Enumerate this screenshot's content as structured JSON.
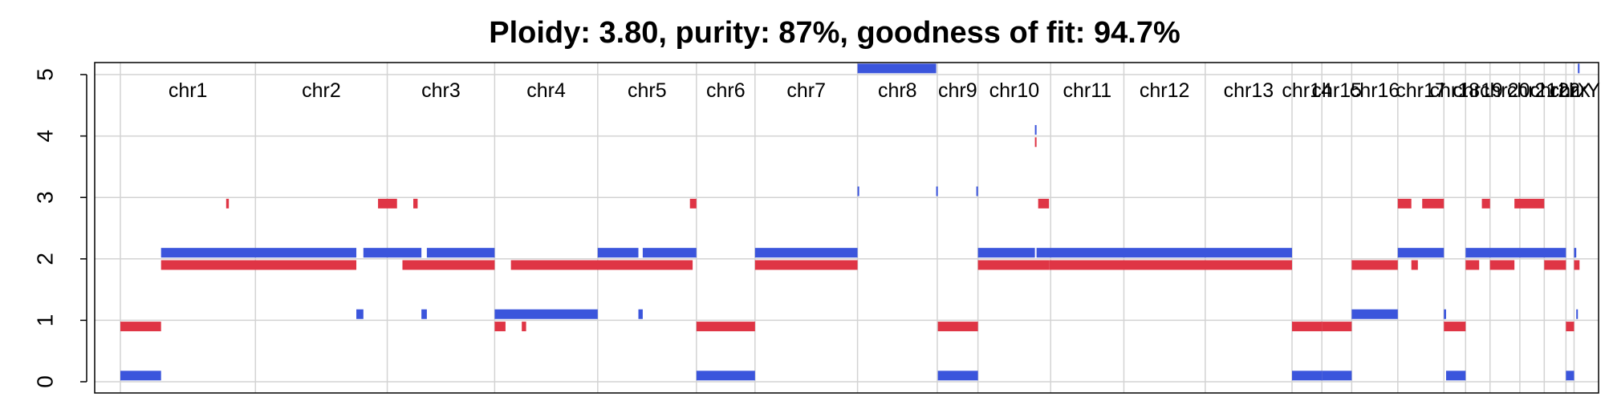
{
  "chart_data": {
    "type": "segment",
    "title": "Ploidy: 3.80, purity: 87%, goodness of fit: 94.7%",
    "xlabel": "",
    "ylabel": "",
    "ylim": [
      -0.2,
      5.1
    ],
    "yticks": [
      0,
      1,
      2,
      3,
      4,
      5
    ],
    "grid": true,
    "colors": {
      "major": "#3B55DC",
      "minor": "#DF3545",
      "grid": "#D3D3D3",
      "frame": "#000000"
    },
    "chromosomes": [
      {
        "name": "chr1",
        "start": 0,
        "end": 249
      },
      {
        "name": "chr2",
        "start": 249,
        "end": 492
      },
      {
        "name": "chr3",
        "start": 492,
        "end": 690
      },
      {
        "name": "chr4",
        "start": 690,
        "end": 880
      },
      {
        "name": "chr5",
        "start": 880,
        "end": 1062
      },
      {
        "name": "chr6",
        "start": 1062,
        "end": 1170
      },
      {
        "name": "chr7",
        "start": 1170,
        "end": 1359
      },
      {
        "name": "chr8",
        "start": 1359,
        "end": 1506
      },
      {
        "name": "chr9",
        "start": 1506,
        "end": 1581
      },
      {
        "name": "chr10",
        "start": 1581,
        "end": 1715
      },
      {
        "name": "chr11",
        "start": 1715,
        "end": 1850
      },
      {
        "name": "chr12",
        "start": 1850,
        "end": 2000
      },
      {
        "name": "chr13",
        "start": 2000,
        "end": 2160
      },
      {
        "name": "chr14",
        "start": 2160,
        "end": 2215
      },
      {
        "name": "chr15",
        "start": 2215,
        "end": 2270
      },
      {
        "name": "chr16",
        "start": 2270,
        "end": 2355
      },
      {
        "name": "chr17",
        "start": 2355,
        "end": 2440
      },
      {
        "name": "chr18",
        "start": 2440,
        "end": 2480
      },
      {
        "name": "chr19",
        "start": 2480,
        "end": 2525
      },
      {
        "name": "chr20",
        "start": 2525,
        "end": 2580
      },
      {
        "name": "chr21",
        "start": 2580,
        "end": 2625
      },
      {
        "name": "chr22",
        "start": 2625,
        "end": 2665
      },
      {
        "name": "chrX",
        "start": 2665,
        "end": 2680
      },
      {
        "name": "chrY",
        "start": 2680,
        "end": 2700
      }
    ],
    "series": [
      {
        "name": "major",
        "color": "#3B55DC",
        "segments": [
          {
            "x0": 0,
            "x1": 75,
            "y": 0.1
          },
          {
            "x0": 75,
            "x1": 435,
            "y": 2.1
          },
          {
            "x0": 435,
            "x1": 448,
            "y": 1.1
          },
          {
            "x0": 448,
            "x1": 555,
            "y": 2.1
          },
          {
            "x0": 555,
            "x1": 565,
            "y": 1.1
          },
          {
            "x0": 565,
            "x1": 690,
            "y": 2.1
          },
          {
            "x0": 690,
            "x1": 880,
            "y": 1.1
          },
          {
            "x0": 880,
            "x1": 955,
            "y": 2.1
          },
          {
            "x0": 955,
            "x1": 963,
            "y": 1.1
          },
          {
            "x0": 963,
            "x1": 1062,
            "y": 2.1
          },
          {
            "x0": 1062,
            "x1": 1170,
            "y": 0.1
          },
          {
            "x0": 1170,
            "x1": 1359,
            "y": 2.1
          },
          {
            "x0": 1359,
            "x1": 1362,
            "y": 3.1
          },
          {
            "x0": 1359,
            "x1": 1504,
            "y": 5.1
          },
          {
            "x0": 1504,
            "x1": 1507,
            "y": 3.1
          },
          {
            "x0": 1507,
            "x1": 1581,
            "y": 0.1
          },
          {
            "x0": 1578,
            "x1": 1581,
            "y": 3.1
          },
          {
            "x0": 1581,
            "x1": 1686,
            "y": 2.1
          },
          {
            "x0": 1686,
            "x1": 1689,
            "y": 4.1
          },
          {
            "x0": 1689,
            "x1": 2160,
            "y": 2.1
          },
          {
            "x0": 2160,
            "x1": 2215,
            "y": 0.1
          },
          {
            "x0": 2215,
            "x1": 2270,
            "y": 0.1
          },
          {
            "x0": 2270,
            "x1": 2355,
            "y": 1.1
          },
          {
            "x0": 2355,
            "x1": 2440,
            "y": 2.1
          },
          {
            "x0": 2440,
            "x1": 2444,
            "y": 1.1
          },
          {
            "x0": 2444,
            "x1": 2480,
            "y": 0.1
          },
          {
            "x0": 2480,
            "x1": 2665,
            "y": 2.1
          },
          {
            "x0": 2665,
            "x1": 2680,
            "y": 0.1
          },
          {
            "x0": 2680,
            "x1": 2684,
            "y": 2.1
          },
          {
            "x0": 2684,
            "x1": 2687,
            "y": 1.1
          },
          {
            "x0": 2687,
            "x1": 2690,
            "y": 5.1
          }
        ]
      },
      {
        "name": "minor",
        "color": "#DF3545",
        "segments": [
          {
            "x0": 0,
            "x1": 75,
            "y": 0.9
          },
          {
            "x0": 75,
            "x1": 435,
            "y": 1.9
          },
          {
            "x0": 195,
            "x1": 200,
            "y": 2.9
          },
          {
            "x0": 475,
            "x1": 510,
            "y": 2.9
          },
          {
            "x0": 540,
            "x1": 548,
            "y": 2.9
          },
          {
            "x0": 520,
            "x1": 690,
            "y": 1.9
          },
          {
            "x0": 690,
            "x1": 710,
            "y": 0.9
          },
          {
            "x0": 740,
            "x1": 748,
            "y": 0.9
          },
          {
            "x0": 720,
            "x1": 1055,
            "y": 1.9
          },
          {
            "x0": 1050,
            "x1": 1062,
            "y": 2.9
          },
          {
            "x0": 1062,
            "x1": 1170,
            "y": 0.9
          },
          {
            "x0": 1170,
            "x1": 1359,
            "y": 1.9
          },
          {
            "x0": 1507,
            "x1": 1581,
            "y": 0.9
          },
          {
            "x0": 1581,
            "x1": 1712,
            "y": 1.9
          },
          {
            "x0": 1686,
            "x1": 1689,
            "y": 3.9
          },
          {
            "x0": 1692,
            "x1": 1712,
            "y": 2.9
          },
          {
            "x0": 1712,
            "x1": 2160,
            "y": 1.9
          },
          {
            "x0": 2160,
            "x1": 2215,
            "y": 0.9
          },
          {
            "x0": 2215,
            "x1": 2270,
            "y": 0.9
          },
          {
            "x0": 2270,
            "x1": 2355,
            "y": 1.9
          },
          {
            "x0": 2355,
            "x1": 2380,
            "y": 2.9
          },
          {
            "x0": 2380,
            "x1": 2392,
            "y": 1.9
          },
          {
            "x0": 2400,
            "x1": 2440,
            "y": 2.9
          },
          {
            "x0": 2440,
            "x1": 2480,
            "y": 0.9
          },
          {
            "x0": 2480,
            "x1": 2505,
            "y": 1.9
          },
          {
            "x0": 2510,
            "x1": 2525,
            "y": 2.9
          },
          {
            "x0": 2525,
            "x1": 2570,
            "y": 1.9
          },
          {
            "x0": 2570,
            "x1": 2625,
            "y": 2.9
          },
          {
            "x0": 2625,
            "x1": 2665,
            "y": 1.9
          },
          {
            "x0": 2665,
            "x1": 2680,
            "y": 0.9
          },
          {
            "x0": 2680,
            "x1": 2690,
            "y": 1.9
          }
        ]
      }
    ]
  }
}
